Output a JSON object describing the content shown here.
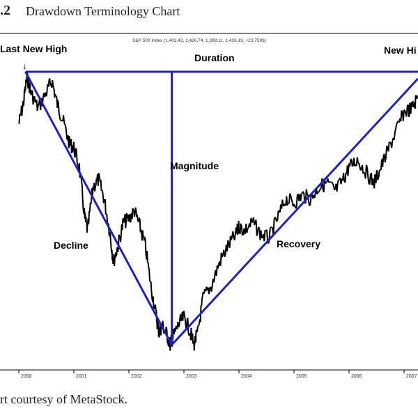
{
  "figure": {
    "number": ".2",
    "title": "Drawdown Terminology Chart",
    "credit": "rt courtesy of MetaStock."
  },
  "chart_data": {
    "type": "line",
    "header": "S&P 500 Index  (1,402.43, 1,426.74, 1,398.11, 1,426.19, +23.7599)",
    "x_tick_labels": [
      "2000",
      "2001",
      "2002",
      "2003",
      "2004",
      "2005",
      "2006",
      "2007"
    ],
    "x": [
      2000.0,
      2000.08,
      2000.15,
      2000.22,
      2000.35,
      2000.5,
      2000.6,
      2000.7,
      2000.8,
      2000.92,
      2001.0,
      2001.1,
      2001.2,
      2001.25,
      2001.35,
      2001.45,
      2001.55,
      2001.65,
      2001.72,
      2001.8,
      2001.9,
      2002.0,
      2002.1,
      2002.2,
      2002.3,
      2002.4,
      2002.5,
      2002.55,
      2002.6,
      2002.68,
      2002.75,
      2002.8,
      2002.9,
      2003.0,
      2003.1,
      2003.18,
      2003.25,
      2003.35,
      2003.5,
      2003.65,
      2003.8,
      2003.95,
      2004.0,
      2004.1,
      2004.25,
      2004.4,
      2004.55,
      2004.7,
      2004.85,
      2005.0,
      2005.15,
      2005.3,
      2005.45,
      2005.6,
      2005.75,
      2005.9,
      2006.0,
      2006.15,
      2006.3,
      2006.45,
      2006.55,
      2006.7,
      2006.85,
      2007.0,
      2007.15,
      2007.25
    ],
    "values": [
      1390,
      1440,
      1510,
      1470,
      1430,
      1470,
      1500,
      1440,
      1400,
      1340,
      1330,
      1280,
      1150,
      1120,
      1230,
      1250,
      1200,
      1120,
      1040,
      1080,
      1140,
      1150,
      1170,
      1130,
      1080,
      980,
      900,
      860,
      880,
      860,
      830,
      850,
      880,
      900,
      870,
      830,
      860,
      950,
      980,
      1040,
      1080,
      1110,
      1130,
      1120,
      1140,
      1110,
      1100,
      1150,
      1200,
      1190,
      1210,
      1200,
      1230,
      1240,
      1220,
      1250,
      1280,
      1300,
      1270,
      1240,
      1270,
      1320,
      1370,
      1420,
      1430,
      1460
    ],
    "annotations": {
      "last_new_high": "Last New High",
      "duration": "Duration",
      "new_high": "New Hi",
      "magnitude": "Magnitude",
      "decline": "Decline",
      "recovery": "Recovery",
      "arrow": "↓"
    },
    "line_color": "#000000",
    "overlay_color": "#1f22c0",
    "grid": false
  }
}
